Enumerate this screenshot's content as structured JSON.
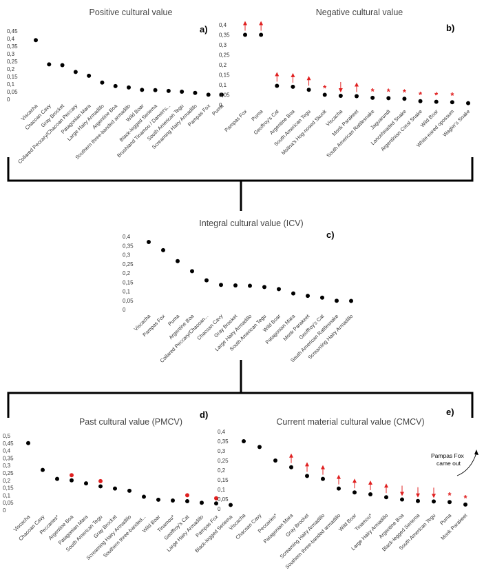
{
  "colors": {
    "point": "#000000",
    "highlight": "#e02020",
    "connector": "#000000"
  },
  "annotation": {
    "line1": "Pampas Fox",
    "line2": "came out"
  },
  "chart_data": [
    {
      "id": "a",
      "type": "scatter",
      "title": "Positive cultural value",
      "panel_label": "a)",
      "yticks": [
        "0",
        "0,05",
        "0,1",
        "0,15",
        "0,2",
        "0,25",
        "0,3",
        "0,35",
        "0,4",
        "0,45"
      ],
      "ylim": [
        0,
        0.45
      ],
      "categories": [
        "Viscacha",
        "Chacoan Cavy",
        "Gray Brocket",
        "Collared Peccary/Chacoan Peccary",
        "Patagonian Mara",
        "Large Hairy Armadillo",
        "Argentine Boa",
        "Southern three-banded armadillo",
        "Wild Boar",
        "Black-legged Seriema",
        "Brushland Tinamou / Darwin's...",
        "South American Tegu",
        "Screaming Hairy Armadillo",
        "Pampas Fox",
        "Puma"
      ],
      "values": [
        0.39,
        0.23,
        0.225,
        0.18,
        0.155,
        0.11,
        0.087,
        0.078,
        0.062,
        0.06,
        0.055,
        0.05,
        0.042,
        0.03,
        0.03
      ]
    },
    {
      "id": "b",
      "type": "scatter",
      "title": "Negative cultural value",
      "panel_label": "b)",
      "yticks": [
        "0",
        "0,05",
        "0,1",
        "0,15",
        "0,2",
        "0,25",
        "0,3",
        "0,35",
        "0,4"
      ],
      "ylim": [
        0,
        0.4
      ],
      "categories": [
        "Pampas Fox",
        "Puma",
        "Geoffroy's Cat",
        "Argentine Boa",
        "South American Tegu",
        "Molina's Hog-nosed Skunk",
        "Viscacha",
        "Monk Parakeet",
        "South American Rattlesnake",
        "Jaguarundi",
        "Lanceheaded Snake",
        "Argentinian Coral Snake",
        "Wild Boar",
        "White-eared opossum",
        "Wagler's Snake"
      ],
      "values": [
        0.35,
        0.35,
        0.095,
        0.09,
        0.075,
        0.05,
        0.045,
        0.043,
        0.035,
        0.033,
        0.03,
        0.018,
        0.015,
        0.013,
        0.008
      ],
      "markers": [
        "up",
        "up",
        "up",
        "up",
        "up",
        "star",
        "down",
        "up",
        "star",
        "star",
        "star",
        "star",
        "star",
        "star",
        "none"
      ]
    },
    {
      "id": "c",
      "type": "scatter",
      "title": "Integral cultural value (ICV)",
      "panel_label": "c)",
      "yticks": [
        "0",
        "0,05",
        "0,1",
        "0,15",
        "0,2",
        "0,25",
        "0,3",
        "0,35",
        "0,4"
      ],
      "ylim": [
        0,
        0.4
      ],
      "categories": [
        "Viscacha",
        "Pampas Fox",
        "Puma",
        "Argentine Boa",
        "Collared Peccary/Chacoan...",
        "Chacoan Cavy",
        "Gray Brocket",
        "Large Hairy Armadillo",
        "South American Tegu",
        "Wild Boar",
        "Patagonian Mara",
        "Monk Parakeet",
        "Geoffroy's Cat",
        "South American Rattlesnake",
        "Screaming Hairy Armadillo"
      ],
      "values": [
        0.37,
        0.325,
        0.265,
        0.21,
        0.16,
        0.135,
        0.132,
        0.13,
        0.123,
        0.112,
        0.088,
        0.075,
        0.065,
        0.048,
        0.047
      ]
    },
    {
      "id": "d",
      "type": "scatter",
      "title": "Past cultural value (PMCV)",
      "panel_label": "d)",
      "yticks": [
        "0",
        "0,05",
        "0,1",
        "0,15",
        "0,2",
        "0,25",
        "0,3",
        "0,35",
        "0,4",
        "0,45",
        "0,5"
      ],
      "ylim": [
        0,
        0.5
      ],
      "categories": [
        "Viscacha",
        "Chacoan Cavy",
        "Peccaries*",
        "Argentine Boa",
        "Patagonian Mara",
        "South American Tegu",
        "Gray Brocket",
        "Screaming Hairy Armadillo",
        "Southern three-banded...",
        "Wild Boar",
        "Tinamou*",
        "Geoffroy's Cat",
        "Large Hairy Armadillo",
        "Pampas Fox",
        "Black-legged Seriema"
      ],
      "values": [
        0.45,
        0.27,
        0.21,
        0.2,
        0.18,
        0.16,
        0.145,
        0.13,
        0.09,
        0.07,
        0.065,
        0.06,
        0.05,
        0.045,
        0.035
      ],
      "highlight_values": [
        null,
        null,
        null,
        0.235,
        null,
        0.195,
        null,
        null,
        null,
        null,
        null,
        0.1,
        null,
        0.08,
        null
      ]
    },
    {
      "id": "e",
      "type": "scatter",
      "title": "Current material cultural value (CMCV)",
      "panel_label": "e)",
      "yticks": [
        "0",
        "0,05",
        "0,1",
        "0,15",
        "0,2",
        "0,25",
        "0,3",
        "0,35",
        "0,4"
      ],
      "ylim": [
        0,
        0.4
      ],
      "categories": [
        "Viscacha",
        "Chacoan Cavy",
        "Peccaries*",
        "Patagonian Mara",
        "Gray Brocket",
        "Screaming Hairy Armadillo",
        "Southern three-banded armadillo",
        "Wild Boar",
        "Tinamou*",
        "Large Hairy Armadillo",
        "Argentine Boa",
        "Black-legged Seriema",
        "South American Tegu",
        "Puma",
        "Monk Parakeet"
      ],
      "values": [
        0.35,
        0.32,
        0.25,
        0.215,
        0.17,
        0.155,
        0.105,
        0.085,
        0.075,
        0.06,
        0.048,
        0.04,
        0.038,
        0.035,
        0.022
      ],
      "markers": [
        "none",
        "none",
        "none",
        "up",
        "up",
        "up",
        "up",
        "up",
        "up",
        "up",
        "down",
        "down",
        "down",
        "star",
        "star"
      ]
    }
  ]
}
